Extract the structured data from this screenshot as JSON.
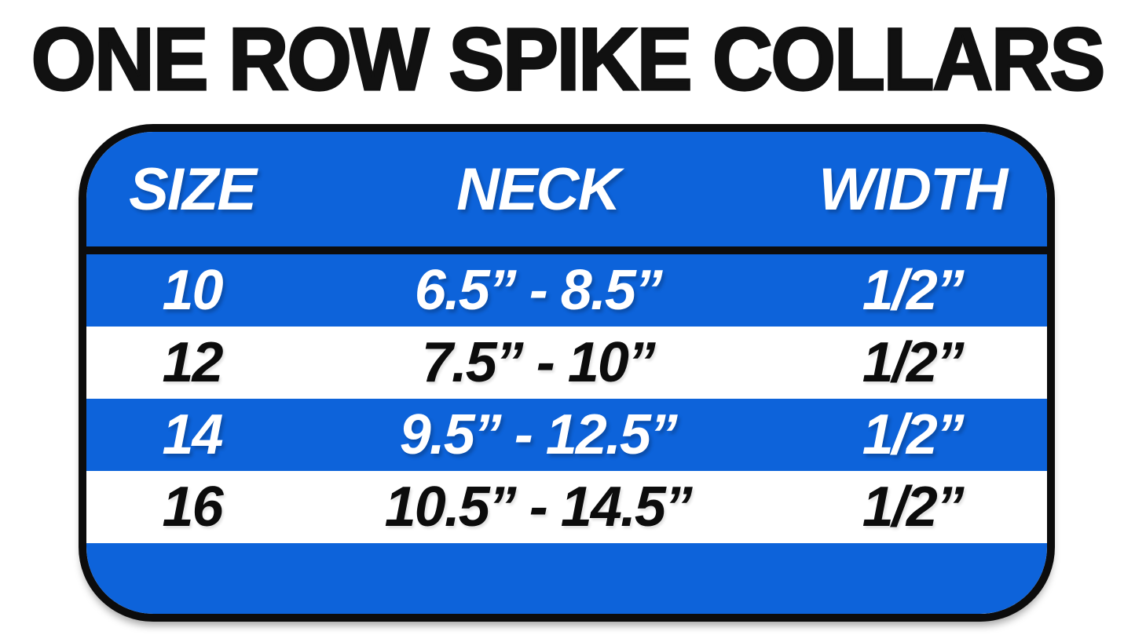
{
  "title": "ONE ROW SPIKE COLLARS",
  "colors": {
    "blue": "#0d63da",
    "border": "#0c0c0c",
    "white_text": "#ffffff",
    "black_text": "#0c0c0c"
  },
  "chart_data": {
    "type": "table",
    "title": "ONE ROW SPIKE COLLARS",
    "columns": [
      "SIZE",
      "NECK",
      "WIDTH"
    ],
    "rows": [
      [
        "10",
        "6.5” - 8.5”",
        "1/2”"
      ],
      [
        "12",
        "7.5” - 10”",
        "1/2”"
      ],
      [
        "14",
        "9.5” - 12.5”",
        "1/2”"
      ],
      [
        "16",
        "10.5” - 14.5”",
        "1/2”"
      ]
    ],
    "layout_hints": {
      "row_stripe_pattern": [
        "blue",
        "white",
        "blue",
        "white"
      ],
      "header_background": "blue",
      "outer_border": "thick black rounded rectangle"
    }
  }
}
